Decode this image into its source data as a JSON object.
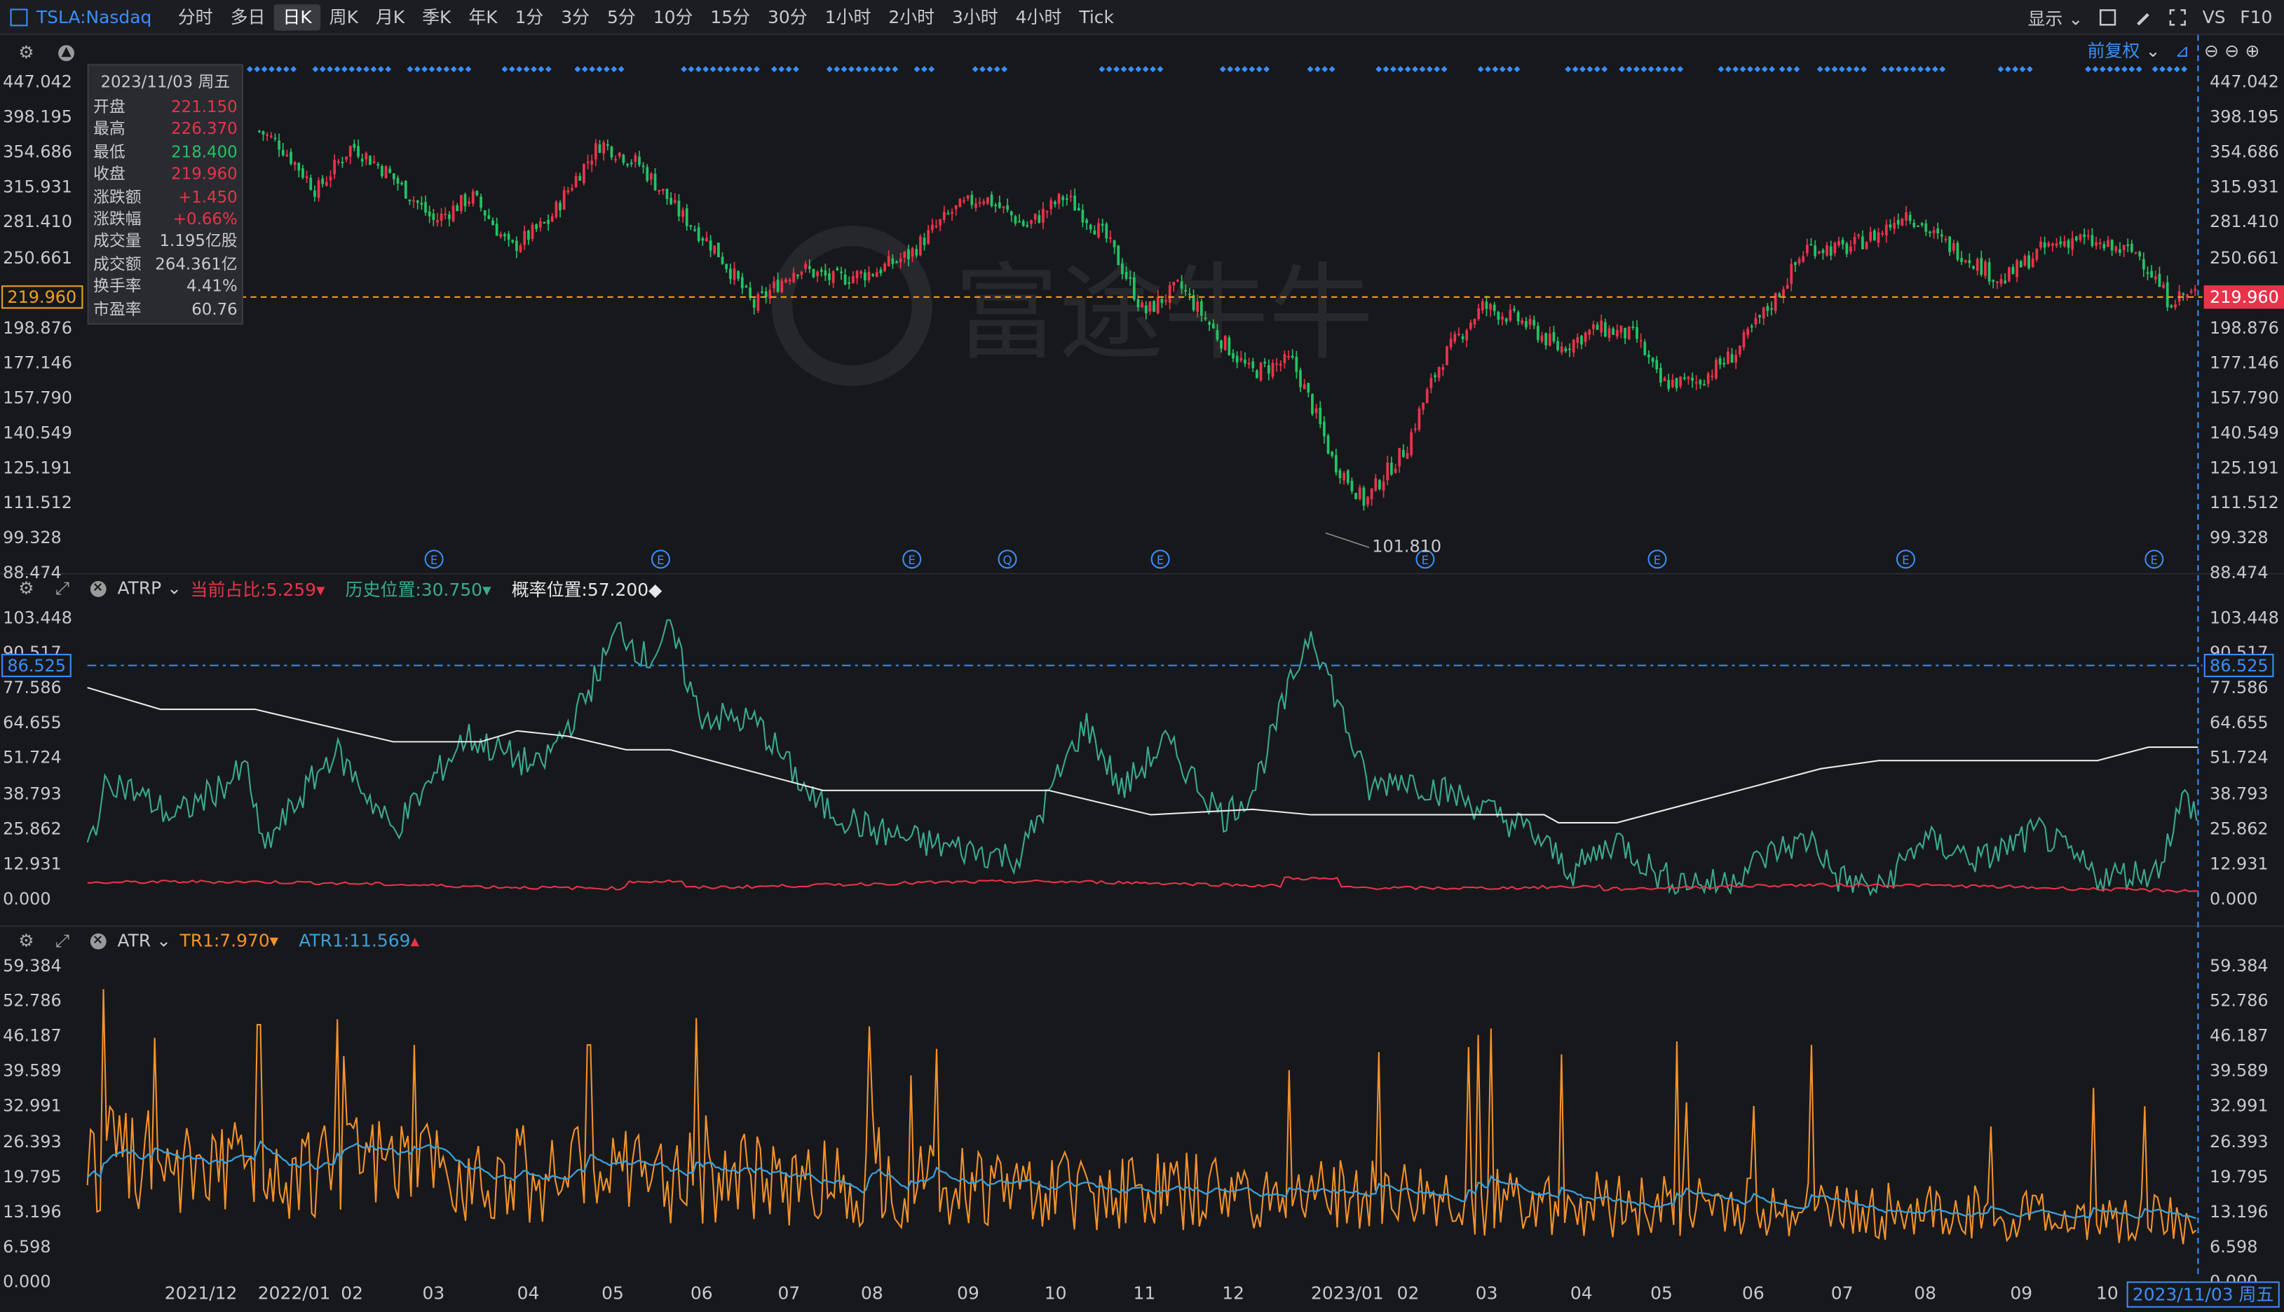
{
  "toolbar": {
    "symbol": "TSLA:Nasdaq",
    "periods": [
      "分时",
      "多日",
      "日K",
      "周K",
      "月K",
      "季K",
      "年K",
      "1分",
      "3分",
      "5分",
      "10分",
      "15分",
      "30分",
      "1小时",
      "2小时",
      "3小时",
      "4小时",
      "Tick"
    ],
    "active_period": "日K",
    "display_label": "显示",
    "vs_label": "VS",
    "f10_label": "F10"
  },
  "main_pane": {
    "adjust_label": "前复权",
    "info": {
      "date": "2023/11/03 周五",
      "rows": [
        {
          "k": "开盘",
          "v": "221.150",
          "c": "red"
        },
        {
          "k": "最高",
          "v": "226.370",
          "c": "red"
        },
        {
          "k": "最低",
          "v": "218.400",
          "c": "green"
        },
        {
          "k": "收盘",
          "v": "219.960",
          "c": "red"
        },
        {
          "k": "涨跌额",
          "v": "+1.450",
          "c": "red"
        },
        {
          "k": "涨跌幅",
          "v": "+0.66%",
          "c": "red"
        },
        {
          "k": "成交量",
          "v": "1.195亿股",
          "c": "white"
        },
        {
          "k": "成交额",
          "v": "264.361亿",
          "c": "white"
        },
        {
          "k": "换手率",
          "v": "4.41%",
          "c": "white"
        },
        {
          "k": "市盈率",
          "v": "60.76",
          "c": "white"
        }
      ]
    },
    "y_ticks": [
      "447.042",
      "398.195",
      "354.686",
      "315.931",
      "281.410",
      "250.661",
      "219.960",
      "198.876",
      "177.146",
      "157.790",
      "140.549",
      "125.191",
      "111.512",
      "99.328",
      "88.474"
    ],
    "current_price": "219.960",
    "low_annotation": "101.810",
    "event_markers": [
      "E",
      "E",
      "E",
      "Q",
      "E",
      "E",
      "E",
      "E",
      "E"
    ],
    "colors": {
      "up": "#e8334a",
      "down": "#23c265",
      "current_line": "#f0a020"
    }
  },
  "atrp_pane": {
    "name": "ATRP",
    "current_ratio": "当前占比:5.259",
    "hist_position": "历史位置:30.750",
    "prob_position": "概率位置:57.200",
    "y_ticks": [
      "103.448",
      "90.517",
      "77.586",
      "64.655",
      "51.724",
      "38.793",
      "25.862",
      "12.931",
      "0.000"
    ],
    "marker_value": "86.525",
    "colors": {
      "hist": "#3aaa90",
      "ratio": "#e8334a",
      "prob": "#e8e8e8",
      "marker": "#3a8ef7"
    }
  },
  "atr_pane": {
    "name": "ATR",
    "tr_label": "TR1:7.970",
    "atr_label": "ATR1:11.569",
    "y_ticks": [
      "59.384",
      "52.786",
      "46.187",
      "39.589",
      "32.991",
      "26.393",
      "19.795",
      "13.196",
      "6.598",
      "0.000"
    ],
    "colors": {
      "tr": "#f5922a",
      "atr": "#3aa0d8"
    }
  },
  "date_axis": {
    "labels": [
      "2021/12",
      "2022/01",
      "02",
      "03",
      "04",
      "05",
      "06",
      "07",
      "08",
      "09",
      "10",
      "11",
      "12",
      "2023/01",
      "02",
      "03",
      "04",
      "05",
      "06",
      "07",
      "08",
      "09",
      "10"
    ],
    "current": "2023/11/03 周五"
  },
  "watermark": {
    "text": "富途牛牛"
  },
  "chart_data": [
    {
      "type": "candlestick",
      "title": "TSLA:Nasdaq 日K",
      "ylim": [
        88.474,
        447.042
      ],
      "close_path": [
        [
          "2021/11/24",
          380
        ],
        [
          "2021/12/01",
          365
        ],
        [
          "2021/12/15",
          310
        ],
        [
          "2021/12/28",
          362
        ],
        [
          "2022/01/10",
          330
        ],
        [
          "2022/01/27",
          280
        ],
        [
          "2022/02/10",
          305
        ],
        [
          "2022/02/24",
          255
        ],
        [
          "2022/03/10",
          280
        ],
        [
          "2022/03/29",
          365
        ],
        [
          "2022/04/12",
          340
        ],
        [
          "2022/04/26",
          290
        ],
        [
          "2022/05/10",
          255
        ],
        [
          "2022/05/24",
          210
        ],
        [
          "2022/06/09",
          240
        ],
        [
          "2022/06/22",
          230
        ],
        [
          "2022/07/07",
          236
        ],
        [
          "2022/07/20",
          250
        ],
        [
          "2022/08/05",
          290
        ],
        [
          "2022/08/16",
          305
        ],
        [
          "2022/09/01",
          275
        ],
        [
          "2022/09/15",
          305
        ],
        [
          "2022/09/30",
          265
        ],
        [
          "2022/10/14",
          205
        ],
        [
          "2022/10/27",
          225
        ],
        [
          "2022/11/10",
          190
        ],
        [
          "2022/11/22",
          168
        ],
        [
          "2022/12/07",
          175
        ],
        [
          "2022/12/22",
          125
        ],
        [
          "2023/01/03",
          108
        ],
        [
          "2023/01/06",
          113
        ],
        [
          "2023/01/18",
          130
        ],
        [
          "2023/01/31",
          175
        ],
        [
          "2023/02/15",
          210
        ],
        [
          "2023/03/01",
          200
        ],
        [
          "2023/03/15",
          182
        ],
        [
          "2023/03/29",
          195
        ],
        [
          "2023/04/12",
          190
        ],
        [
          "2023/04/21",
          162
        ],
        [
          "2023/05/05",
          163
        ],
        [
          "2023/05/19",
          180
        ],
        [
          "2023/06/02",
          215
        ],
        [
          "2023/06/14",
          257
        ],
        [
          "2023/06/28",
          255
        ],
        [
          "2023/07/11",
          270
        ],
        [
          "2023/07/20",
          290
        ],
        [
          "2023/07/31",
          265
        ],
        [
          "2023/08/14",
          245
        ],
        [
          "2023/08/24",
          228
        ],
        [
          "2023/09/08",
          255
        ],
        [
          "2023/09/20",
          265
        ],
        [
          "2023/10/03",
          255
        ],
        [
          "2023/10/13",
          252
        ],
        [
          "2023/10/24",
          215
        ],
        [
          "2023/11/03",
          219.96
        ]
      ]
    },
    {
      "type": "line",
      "title": "ATRP",
      "ylim": [
        0,
        103.448
      ],
      "series": [
        {
          "name": "历史位置",
          "values_note": "oscillating 14–103"
        },
        {
          "name": "概率位置",
          "values_note": "step line"
        },
        {
          "name": "当前占比",
          "values_note": "low 3–7"
        }
      ]
    },
    {
      "type": "line",
      "title": "ATR",
      "ylim": [
        0,
        59.384
      ],
      "series": [
        {
          "name": "TR1"
        },
        {
          "name": "ATR1"
        }
      ]
    }
  ]
}
